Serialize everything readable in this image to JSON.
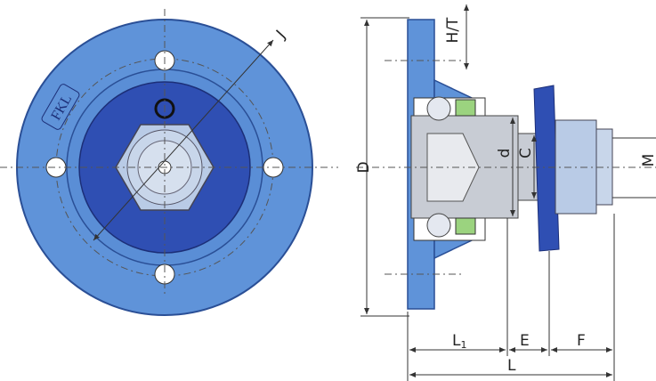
{
  "logo": "FKL",
  "dimensions": {
    "j": "J",
    "ht": "H/T",
    "outer_d": "D",
    "bore_d": "d",
    "c": "C",
    "m": "M",
    "l1": {
      "letter": "L",
      "sub": "1"
    },
    "e": "E",
    "f": "F",
    "l": "L"
  }
}
